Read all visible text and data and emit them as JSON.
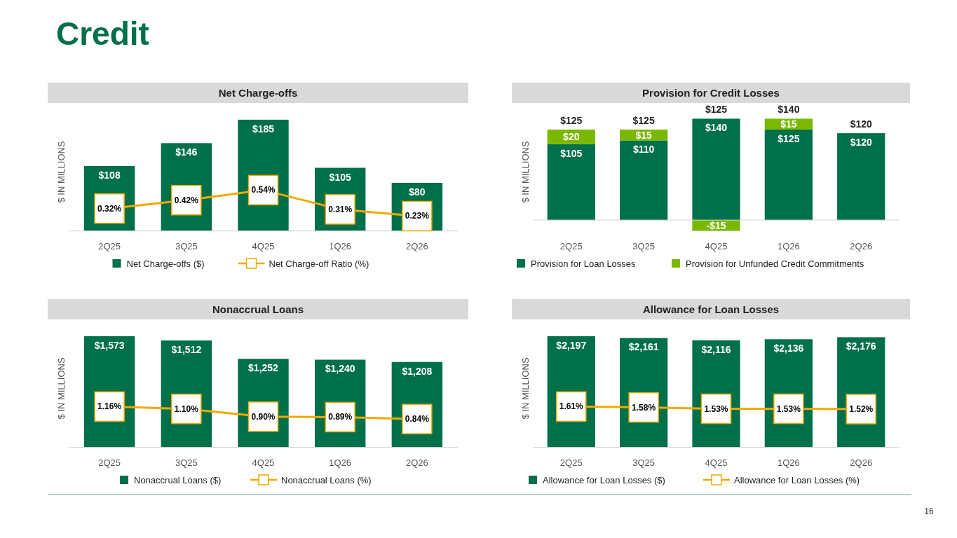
{
  "chart_data": [
    {
      "type": "other",
      "title": "Credit",
      "annotations": [
        "16"
      ]
    },
    {
      "type": "bar",
      "title": "Net Charge-offs",
      "ylabel": "$ IN MILLIONS",
      "categories": [
        "2Q25",
        "3Q25",
        "4Q25",
        "1Q26",
        "2Q26"
      ],
      "tick_labels": "x",
      "data_labels": true,
      "legend": "bottom",
      "series": [
        {
          "name": "Net Charge-offs ($)",
          "type": "bar",
          "color": "#00704a",
          "values": [
            108,
            146,
            185,
            105,
            80
          ],
          "value_labels": [
            "$108",
            "$146",
            "$185",
            "$105",
            "$80"
          ]
        },
        {
          "name": "Net Charge-off Ratio (%)",
          "type": "line",
          "axis": "y2",
          "color": "#f2a900",
          "marker": "square",
          "values": [
            0.32,
            0.42,
            0.54,
            0.31,
            0.23
          ],
          "value_labels": [
            "0.32%",
            "0.42%",
            "0.54%",
            "0.31%",
            "0.23%"
          ]
        }
      ]
    },
    {
      "type": "bar",
      "title": "Provision for Credit Losses",
      "ylabel": "$ IN MILLIONS",
      "categories": [
        "2Q25",
        "3Q25",
        "4Q25",
        "1Q26",
        "2Q26"
      ],
      "tick_labels": "x",
      "stacked": true,
      "data_labels": true,
      "legend": "bottom",
      "totals": [
        "$125",
        "$125",
        "$125",
        "$140",
        "$120"
      ],
      "series": [
        {
          "name": "Provision for Loan Losses",
          "type": "bar",
          "color": "#00704a",
          "values": [
            105,
            110,
            140,
            125,
            120
          ],
          "value_labels": [
            "$105",
            "$110",
            "$140",
            "$125",
            "$120"
          ]
        },
        {
          "name": "Provision for Unfunded Credit Commitments",
          "type": "bar",
          "color": "#7ab800",
          "values": [
            20,
            15,
            -15,
            15,
            null
          ],
          "value_labels": [
            "$20",
            "$15",
            "-$15",
            "$15",
            null
          ]
        }
      ]
    },
    {
      "type": "bar",
      "title": "Nonaccrual Loans",
      "ylabel": "$ IN MILLIONS",
      "categories": [
        "2Q25",
        "3Q25",
        "4Q25",
        "1Q26",
        "2Q26"
      ],
      "tick_labels": "x",
      "data_labels": true,
      "legend": "bottom",
      "series": [
        {
          "name": "Nonaccrual Loans ($)",
          "type": "bar",
          "color": "#00704a",
          "values": [
            1573,
            1512,
            1252,
            1240,
            1208
          ],
          "value_labels": [
            "$1,573",
            "$1,512",
            "$1,252",
            "$1,240",
            "$1,208"
          ]
        },
        {
          "name": "Nonaccrual Loans (%)",
          "type": "line",
          "axis": "y2",
          "color": "#f2a900",
          "marker": "square",
          "values": [
            1.16,
            1.1,
            0.9,
            0.89,
            0.84
          ],
          "value_labels": [
            "1.16%",
            "1.10%",
            "0.90%",
            "0.89%",
            "0.84%"
          ]
        }
      ]
    },
    {
      "type": "bar",
      "title": "Allowance for Loan Losses",
      "ylabel": "$ IN MILLIONS",
      "categories": [
        "2Q25",
        "3Q25",
        "4Q25",
        "1Q26",
        "2Q26"
      ],
      "tick_labels": "x",
      "data_labels": true,
      "legend": "bottom",
      "series": [
        {
          "name": "Allowance for Loan Losses ($)",
          "type": "bar",
          "color": "#00704a",
          "values": [
            2197,
            2161,
            2116,
            2136,
            2176
          ],
          "value_labels": [
            "$2,197",
            "$2,161",
            "$2,116",
            "$2,136",
            "$2,176"
          ]
        },
        {
          "name": "Allowance for Loan Losses (%)",
          "type": "line",
          "axis": "y2",
          "color": "#f2a900",
          "marker": "square",
          "values": [
            1.61,
            1.58,
            1.53,
            1.53,
            1.52
          ],
          "value_labels": [
            "1.61%",
            "1.58%",
            "1.53%",
            "1.53%",
            "1.52%"
          ]
        }
      ]
    }
  ]
}
